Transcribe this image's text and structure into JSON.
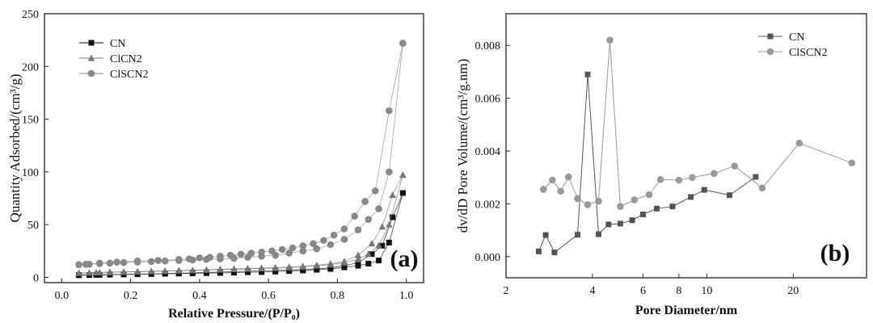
{
  "chart_data": [
    {
      "type": "scatter",
      "panel_label": "(a)",
      "xlabel": "Relative Pressure/(P/P₀)",
      "ylabel": "Quantity Adsorbed/(cm³/g)",
      "xlim": [
        -0.05,
        1.05
      ],
      "ylim": [
        -5,
        250
      ],
      "xticks": [
        "0.0",
        "0.2",
        "0.4",
        "0.6",
        "0.8",
        "1.0"
      ],
      "yticks": [
        "0",
        "50",
        "100",
        "150",
        "200",
        "250"
      ],
      "legend_position": "top-left",
      "series": [
        {
          "name": "CN",
          "marker": "square",
          "color": "#111111",
          "adsorption": {
            "x": [
              0.05,
              0.08,
              0.11,
              0.14,
              0.18,
              0.22,
              0.26,
              0.3,
              0.34,
              0.38,
              0.42,
              0.46,
              0.5,
              0.54,
              0.58,
              0.62,
              0.66,
              0.7,
              0.74,
              0.78,
              0.82,
              0.86,
              0.89,
              0.92,
              0.95,
              0.99
            ],
            "y": [
              2,
              2.2,
              2.4,
              2.6,
              2.8,
              3,
              3.2,
              3.4,
              3.6,
              3.8,
              4,
              4.2,
              4.5,
              4.8,
              5,
              5.5,
              6,
              6.5,
              7.2,
              8,
              9.5,
              11,
              13,
              16,
              33,
              80
            ]
          },
          "desorption": {
            "x": [
              0.99,
              0.96,
              0.93,
              0.9,
              0.86,
              0.82,
              0.78,
              0.74,
              0.7,
              0.66,
              0.62,
              0.58,
              0.54,
              0.5,
              0.46,
              0.42,
              0.38,
              0.34,
              0.3,
              0.26,
              0.22,
              0.18,
              0.14,
              0.1,
              0.05
            ],
            "y": [
              80,
              57,
              30,
              22,
              14,
              11,
              9,
              8,
              7.5,
              7,
              6.6,
              6.2,
              5.8,
              5.5,
              5,
              4.6,
              4.2,
              3.9,
              3.6,
              3.3,
              3,
              2.8,
              2.6,
              2.4,
              2.2
            ]
          }
        },
        {
          "name": "ClCN2",
          "marker": "triangle",
          "color": "#777777",
          "adsorption": {
            "x": [
              0.05,
              0.08,
              0.11,
              0.14,
              0.18,
              0.22,
              0.26,
              0.3,
              0.34,
              0.38,
              0.42,
              0.46,
              0.5,
              0.54,
              0.58,
              0.62,
              0.66,
              0.7,
              0.74,
              0.78,
              0.82,
              0.86,
              0.89,
              0.92,
              0.95,
              0.99
            ],
            "y": [
              4,
              4.3,
              4.6,
              4.9,
              5.2,
              5.5,
              5.8,
              6.1,
              6.4,
              6.7,
              7,
              7.3,
              7.6,
              8,
              8.4,
              8.8,
              9.3,
              10,
              11,
              12,
              14,
              17,
              22,
              30,
              50,
              97
            ]
          },
          "desorption": {
            "x": [
              0.99,
              0.96,
              0.93,
              0.9,
              0.86,
              0.82,
              0.78,
              0.74,
              0.7,
              0.66,
              0.62,
              0.58,
              0.54,
              0.5,
              0.46,
              0.42,
              0.38,
              0.34,
              0.3,
              0.26,
              0.22,
              0.18,
              0.14,
              0.1,
              0.05
            ],
            "y": [
              97,
              78,
              48,
              32,
              21,
              15,
              13,
              11.5,
              10.5,
              9.8,
              9.2,
              8.8,
              8.4,
              8,
              7.6,
              7.2,
              6.8,
              6.4,
              6,
              5.7,
              5.4,
              5.1,
              4.8,
              4.5,
              4.2
            ]
          }
        },
        {
          "name": "ClSCN2",
          "marker": "circle",
          "color": "#888888",
          "adsorption": {
            "x": [
              0.05,
              0.08,
              0.11,
              0.14,
              0.18,
              0.22,
              0.26,
              0.3,
              0.34,
              0.38,
              0.42,
              0.46,
              0.5,
              0.54,
              0.58,
              0.62,
              0.66,
              0.7,
              0.74,
              0.78,
              0.82,
              0.86,
              0.89,
              0.92,
              0.95,
              0.99
            ],
            "y": [
              12,
              12.5,
              13,
              13.5,
              14,
              14.5,
              15,
              15.5,
              16,
              16.5,
              17,
              17.5,
              18,
              19,
              20,
              21,
              23,
              25,
              27,
              31,
              36,
              45,
              55,
              65,
              100,
              222
            ]
          },
          "desorption": {
            "x": [
              0.99,
              0.95,
              0.91,
              0.88,
              0.85,
              0.82,
              0.79,
              0.76,
              0.73,
              0.7,
              0.67,
              0.64,
              0.61,
              0.58,
              0.55,
              0.52,
              0.49,
              0.46,
              0.43,
              0.4,
              0.37,
              0.34,
              0.28,
              0.22,
              0.16,
              0.11,
              0.07
            ],
            "y": [
              222,
              158,
              82,
              72,
              58,
              46,
              40,
              35,
              32,
              30,
              28,
              26.5,
              25,
              24,
              23,
              22,
              21,
              20,
              19,
              18.5,
              17.5,
              17,
              16,
              15.5,
              14.5,
              13.5,
              12.5
            ]
          }
        }
      ]
    },
    {
      "type": "line",
      "panel_label": "(b)",
      "xlabel": "Pore Diameter/nm",
      "ylabel": "dv/dD Pore Volume/(cm³/g.nm)",
      "xscale": "log",
      "xlim": [
        2,
        36
      ],
      "ylim": [
        -0.0008,
        0.0092
      ],
      "xticks": [
        "2",
        "4",
        "6",
        "8",
        "10",
        "20"
      ],
      "yticks": [
        "0.000",
        "0.002",
        "0.004",
        "0.006",
        "0.008"
      ],
      "legend_position": "top-right",
      "series": [
        {
          "name": "CN",
          "marker": "square",
          "color": "#555555",
          "x": [
            2.6,
            2.75,
            2.95,
            3.55,
            3.85,
            4.2,
            4.55,
            5.0,
            5.5,
            6.0,
            6.7,
            7.6,
            8.8,
            9.8,
            12.0,
            14.8
          ],
          "y": [
            0.0002,
            0.00082,
            0.00016,
            0.00083,
            0.0069,
            0.00085,
            0.00122,
            0.00125,
            0.00138,
            0.0016,
            0.00182,
            0.0019,
            0.00226,
            0.00253,
            0.00233,
            0.00302
          ]
        },
        {
          "name": "ClSCN2",
          "marker": "circle",
          "color": "#999999",
          "x": [
            2.7,
            2.9,
            3.1,
            3.3,
            3.55,
            3.85,
            4.2,
            4.6,
            5.0,
            5.6,
            6.3,
            6.9,
            8.0,
            8.9,
            10.6,
            12.5,
            15.6,
            21.0,
            32.0
          ],
          "y": [
            0.00255,
            0.0029,
            0.00248,
            0.00302,
            0.0022,
            0.00197,
            0.0021,
            0.0082,
            0.0019,
            0.00215,
            0.00235,
            0.00292,
            0.0029,
            0.003,
            0.00315,
            0.00343,
            0.0026,
            0.0043,
            0.00355
          ]
        }
      ]
    }
  ]
}
